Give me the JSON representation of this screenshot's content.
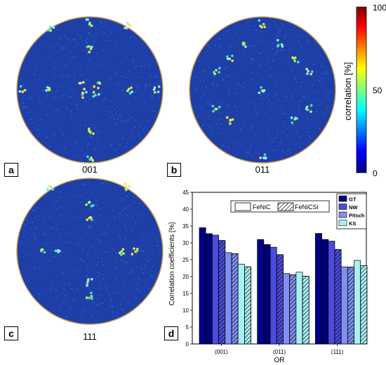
{
  "pole_figures": [
    {
      "tag": "a",
      "caption": "001"
    },
    {
      "tag": "b",
      "caption": "011"
    },
    {
      "tag": "c",
      "caption": "111"
    }
  ],
  "colorbar": {
    "label": "correlation [%]",
    "ticks": [
      "100",
      "50",
      "0"
    ],
    "colors": [
      "#800000",
      "#ff0000",
      "#ffff00",
      "#00ffff",
      "#0000ff",
      "#00007f"
    ]
  },
  "panel_d_tag": "d",
  "chart_data": {
    "type": "bar",
    "xlabel": "OR",
    "ylabel": "Correlation coefficients [%]",
    "ylim": [
      0,
      45
    ],
    "yticks": [
      0,
      5,
      10,
      15,
      20,
      25,
      30,
      35,
      40,
      45
    ],
    "categories": [
      "(001)",
      "(011)",
      "(111)"
    ],
    "materials": [
      "FeNiC",
      "FeNiCSi"
    ],
    "series": [
      {
        "name": "GT",
        "color": "#00008b",
        "values": {
          "FeNiC": [
            34.5,
            31.0,
            32.8
          ],
          "FeNiCSi": [
            32.7,
            29.5,
            31.0
          ]
        }
      },
      {
        "name": "NW",
        "color": "#4b4bdc",
        "values": {
          "FeNiC": [
            32.3,
            28.7,
            30.5
          ],
          "FeNiCSi": [
            30.7,
            26.5,
            28.0
          ]
        }
      },
      {
        "name": "Pitsch",
        "color": "#7f8ff2",
        "values": {
          "FeNiC": [
            27.1,
            20.9,
            22.9
          ],
          "FeNiCSi": [
            26.8,
            20.5,
            22.8
          ]
        }
      },
      {
        "name": "KS",
        "color": "#a8f0f4",
        "values": {
          "FeNiC": [
            23.7,
            21.3,
            24.8
          ],
          "FeNiCSi": [
            22.9,
            20.1,
            23.2
          ]
        }
      }
    ]
  }
}
